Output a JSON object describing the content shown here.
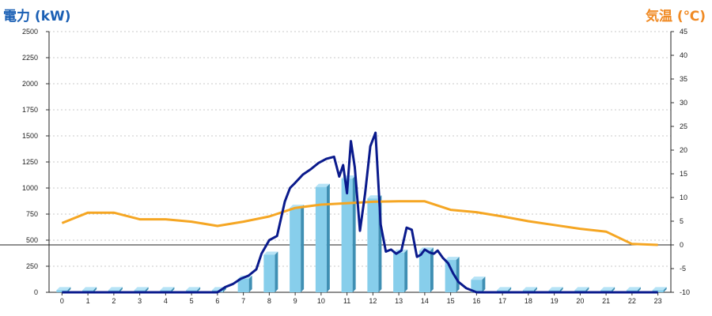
{
  "chart_data": {
    "type": "bar",
    "left_axis_title": "電力 (kW)",
    "right_axis_title": "気温 (℃)",
    "x_ticks": [
      "0",
      "1",
      "2",
      "3",
      "4",
      "5",
      "6",
      "7",
      "8",
      "9",
      "10",
      "11",
      "12",
      "13",
      "14",
      "15",
      "16",
      "17",
      "18",
      "19",
      "20",
      "21",
      "22",
      "23"
    ],
    "left_ticks": [
      "0",
      "250",
      "500",
      "750",
      "1000",
      "1250",
      "1500",
      "1750",
      "2000",
      "2250",
      "2500"
    ],
    "right_ticks": [
      "-10",
      "-5",
      "0",
      "5",
      "10",
      "15",
      "20",
      "25",
      "30",
      "35",
      "40",
      "45"
    ],
    "ylim_left": [
      0,
      2500
    ],
    "ylim_right": [
      -10,
      45
    ],
    "grid": true,
    "reference_line_temp": 0,
    "series": [
      {
        "type": "bar",
        "axis": "left",
        "color": "#87ceeb",
        "values": [
          20,
          20,
          20,
          20,
          20,
          20,
          20,
          130,
          360,
          810,
          1010,
          1090,
          900,
          380,
          400,
          310,
          120,
          20,
          20,
          20,
          20,
          20,
          20,
          20
        ]
      },
      {
        "type": "line",
        "axis": "right",
        "color": "#f5a623",
        "values": [
          4.6,
          6.8,
          6.8,
          5.4,
          5.4,
          4.9,
          4.0,
          4.9,
          6.0,
          7.8,
          8.5,
          8.8,
          9.1,
          9.2,
          9.2,
          7.4,
          6.9,
          6.0,
          5.0,
          4.2,
          3.4,
          2.8,
          0.2,
          0.0
        ]
      },
      {
        "type": "line",
        "axis": "left",
        "color": "#0a1a8c",
        "x": [
          0,
          1,
          2,
          3,
          4,
          5,
          6,
          6.3,
          6.6,
          6.9,
          7.2,
          7.5,
          7.7,
          8.0,
          8.3,
          8.6,
          8.8,
          9.0,
          9.3,
          9.6,
          9.9,
          10.2,
          10.5,
          10.7,
          10.85,
          11.0,
          11.15,
          11.3,
          11.5,
          11.7,
          11.9,
          12.1,
          12.3,
          12.5,
          12.7,
          12.9,
          13.1,
          13.3,
          13.5,
          13.7,
          13.85,
          14.0,
          14.2,
          14.35,
          14.5,
          14.7,
          14.9,
          15.1,
          15.3,
          15.6,
          16.0,
          16.5,
          17,
          18,
          19,
          20,
          21,
          22,
          23
        ],
        "values": [
          0,
          0,
          0,
          0,
          0,
          0,
          0,
          50,
          80,
          130,
          160,
          220,
          370,
          500,
          540,
          870,
          1000,
          1050,
          1130,
          1180,
          1240,
          1280,
          1300,
          1110,
          1220,
          950,
          1450,
          1200,
          590,
          950,
          1400,
          1530,
          650,
          390,
          410,
          370,
          400,
          620,
          600,
          340,
          360,
          410,
          380,
          370,
          400,
          330,
          280,
          180,
          100,
          40,
          0,
          0,
          0,
          0,
          0,
          0,
          0,
          0,
          0
        ]
      }
    ]
  }
}
